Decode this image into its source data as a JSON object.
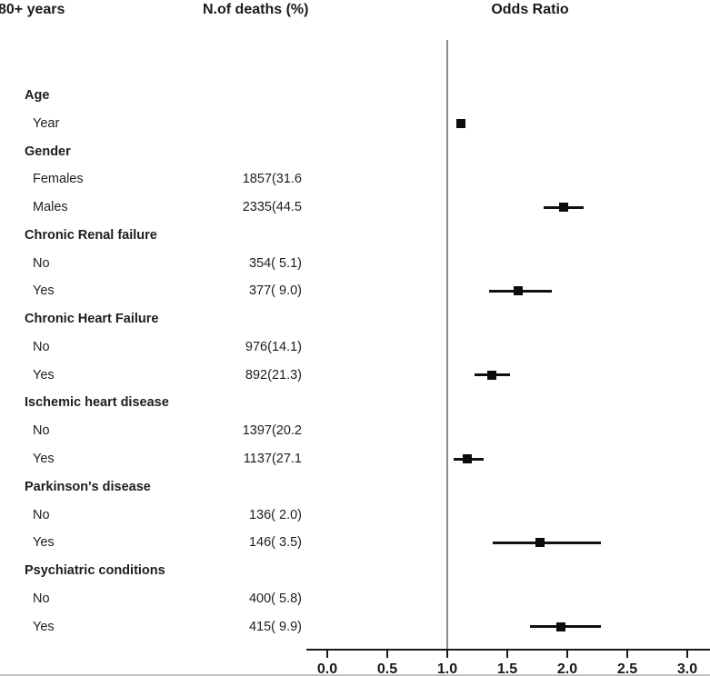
{
  "figure": {
    "col_group_label": "80+ years",
    "col_deaths_label": "N.of deaths (%)",
    "col_or_label": "Odds Ratio"
  },
  "chart_data": {
    "type": "forest",
    "title": "Odds Ratio",
    "subtitle": "80+ years",
    "columns": [
      "80+ years",
      "N.of deaths (%)",
      "Odds Ratio"
    ],
    "x_ticks": [
      "0.0",
      "0.5",
      "1.0",
      "1.5",
      "2.0",
      "2.5",
      "3.0"
    ],
    "x_range": [
      0.0,
      3.19
    ],
    "reference_line": 1.0,
    "grid": false,
    "rows": [
      {
        "label": "Age",
        "header": true,
        "deaths": "",
        "or": null,
        "ci_low": null,
        "ci_high": null
      },
      {
        "label": "Year",
        "header": false,
        "deaths": "",
        "or": 1.11,
        "ci_low": null,
        "ci_high": null
      },
      {
        "label": "Gender",
        "header": true,
        "deaths": "",
        "or": null,
        "ci_low": null,
        "ci_high": null
      },
      {
        "label": "Females",
        "header": false,
        "deaths": "1857(31.6",
        "or": null,
        "ci_low": null,
        "ci_high": null
      },
      {
        "label": "Males",
        "header": false,
        "deaths": "2335(44.5",
        "or": 1.97,
        "ci_low": 1.8,
        "ci_high": 2.14
      },
      {
        "label": "Chronic Renal failure",
        "header": true,
        "deaths": "",
        "or": null,
        "ci_low": null,
        "ci_high": null
      },
      {
        "label": "No",
        "header": false,
        "deaths": "354( 5.1)",
        "or": null,
        "ci_low": null,
        "ci_high": null
      },
      {
        "label": "Yes",
        "header": false,
        "deaths": "377( 9.0)",
        "or": 1.59,
        "ci_low": 1.35,
        "ci_high": 1.87
      },
      {
        "label": "Chronic Heart Failure",
        "header": true,
        "deaths": "",
        "or": null,
        "ci_low": null,
        "ci_high": null
      },
      {
        "label": "No",
        "header": false,
        "deaths": "976(14.1)",
        "or": null,
        "ci_low": null,
        "ci_high": null
      },
      {
        "label": "Yes",
        "header": false,
        "deaths": "892(21.3)",
        "or": 1.37,
        "ci_low": 1.23,
        "ci_high": 1.52
      },
      {
        "label": "Ischemic heart disease",
        "header": true,
        "deaths": "",
        "or": null,
        "ci_low": null,
        "ci_high": null
      },
      {
        "label": "No",
        "header": false,
        "deaths": "1397(20.2",
        "or": null,
        "ci_low": null,
        "ci_high": null
      },
      {
        "label": "Yes",
        "header": false,
        "deaths": "1137(27.1",
        "or": 1.17,
        "ci_low": 1.05,
        "ci_high": 1.3
      },
      {
        "label": "Parkinson's disease",
        "header": true,
        "deaths": "",
        "or": null,
        "ci_low": null,
        "ci_high": null
      },
      {
        "label": "No",
        "header": false,
        "deaths": "136( 2.0)",
        "or": null,
        "ci_low": null,
        "ci_high": null
      },
      {
        "label": "Yes",
        "header": false,
        "deaths": "146( 3.5)",
        "or": 1.77,
        "ci_low": 1.38,
        "ci_high": 2.28
      },
      {
        "label": "Psychiatric conditions",
        "header": true,
        "deaths": "",
        "or": null,
        "ci_low": null,
        "ci_high": null
      },
      {
        "label": "No",
        "header": false,
        "deaths": "400( 5.8)",
        "or": null,
        "ci_low": null,
        "ci_high": null
      },
      {
        "label": "Yes",
        "header": false,
        "deaths": "415( 9.9)",
        "or": 1.95,
        "ci_low": 1.69,
        "ci_high": 2.28
      }
    ],
    "colors": {
      "marker": "#0c0c0c",
      "ci_line": "#111111",
      "axis": "#1a1a1a",
      "reference_line": "#8a8a8a",
      "text": "#1d1d1d"
    }
  }
}
